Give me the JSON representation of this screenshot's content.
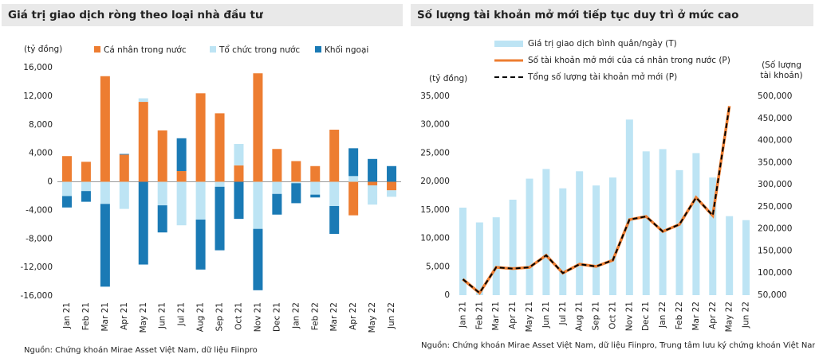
{
  "chart_data": [
    {
      "type": "stacked_bar",
      "title": "Giá trị giao dịch ròng theo loại nhà đầu tư",
      "y_label": "(tỷ đồng)",
      "source": "Nguồn: Chứng khoán Mirae Asset Việt Nam, dữ liệu Fiinpro",
      "categories": [
        "Jan 21",
        "Feb 21",
        "Mar 21",
        "Apr 21",
        "May 21",
        "Jun 21",
        "Jul 21",
        "Aug 21",
        "Sep 21",
        "Oct 21",
        "Nov 21",
        "Dec 21",
        "Jan 22",
        "Feb 22",
        "Mar 22",
        "Apr 22",
        "May 22",
        "Jun 22"
      ],
      "series": [
        {
          "name": "Cá nhân trong nước",
          "color": "#ed7d31",
          "values": [
            3600,
            2800,
            14800,
            3800,
            11200,
            7200,
            1500,
            12400,
            9600,
            2300,
            15200,
            4600,
            2900,
            2200,
            7300,
            -4700,
            -500,
            -1200
          ]
        },
        {
          "name": "Tổ chức trong nước",
          "color": "#bde4f4",
          "values": [
            -2000,
            -1300,
            -3100,
            -3800,
            500,
            -3300,
            -6100,
            -5300,
            -700,
            3000,
            -6600,
            -1700,
            -200,
            -1800,
            -3400,
            800,
            -2700,
            -900
          ]
        },
        {
          "name": "Khối ngoại",
          "color": "#1a7ab5",
          "values": [
            -1600,
            -1500,
            -11600,
            100,
            -11600,
            -3800,
            4600,
            -7000,
            -8900,
            -5200,
            -8600,
            -2900,
            -2800,
            -400,
            -3900,
            3900,
            3200,
            2200
          ]
        }
      ],
      "ylim": [
        -16000,
        16000
      ],
      "yticks": [
        {
          "value": -16000,
          "label": "-16,000"
        },
        {
          "value": -12000,
          "label": "-12,000"
        },
        {
          "value": -8000,
          "label": "-8,000"
        },
        {
          "value": -4000,
          "label": "-4,000"
        },
        0,
        {
          "value": 4000,
          "label": "4,000"
        },
        {
          "value": 8000,
          "label": "8,000"
        },
        {
          "value": 12000,
          "label": "12,000"
        },
        {
          "value": 16000,
          "label": "16,000"
        }
      ],
      "grid": false,
      "legend": "top"
    },
    {
      "type": "combo",
      "title": "Số lượng tài khoản mở mới tiếp tục duy trì ở mức cao",
      "y_label": "(tỷ đồng)",
      "y2_label": [
        "(Số lượng",
        "tài khoản)"
      ],
      "source": "Nguồn: Chứng khoán Mirae Asset Việt Nam, dữ liệu Fiinpro, Trung tâm lưu ký chứng khoán Việt Nam",
      "categories": [
        "Jan 21",
        "Feb 21",
        "Mar 21",
        "Apr 21",
        "May 21",
        "Jun 21",
        "Jul 21",
        "Aug 21",
        "Sep 21",
        "Oct 21",
        "Nov 21",
        "Dec 21",
        "Jan 22",
        "Feb 22",
        "Mar 22",
        "Apr 22",
        "May 22",
        "Jun 22"
      ],
      "series": [
        {
          "name": "Giá trị giao dịch bình quân/ngày (T)",
          "type": "bar",
          "color": "#bde4f4",
          "values": [
            15400,
            12800,
            13700,
            16800,
            20500,
            22200,
            18800,
            21800,
            19300,
            20700,
            30900,
            25300,
            25700,
            22000,
            25000,
            20700,
            13900,
            13200
          ]
        },
        {
          "name": "Số tài khoản mở mới của cá nhân trong nước (P)",
          "type": "line",
          "axis": "y2",
          "color": "#ed7d31",
          "values": [
            86000,
            55000,
            113000,
            110000,
            113000,
            140000,
            100000,
            120000,
            115000,
            129000,
            221000,
            228000,
            194000,
            210000,
            271000,
            230000,
            478000,
            null
          ]
        },
        {
          "name": "Tổng số lượng tài khoản mở mới (P)",
          "type": "line",
          "axis": "y2",
          "color": "#000000",
          "dashed": true,
          "values": [
            86000,
            55000,
            113000,
            110000,
            113000,
            140000,
            100000,
            120000,
            115000,
            129000,
            221000,
            228000,
            194000,
            210000,
            271000,
            230000,
            478000,
            null
          ]
        }
      ],
      "ylim": [
        0,
        35000
      ],
      "yticks": [
        0,
        {
          "value": 5000,
          "label": "5,000"
        },
        {
          "value": 10000,
          "label": "10,000"
        },
        {
          "value": 15000,
          "label": "15,000"
        },
        {
          "value": 20000,
          "label": "20,000"
        },
        {
          "value": 25000,
          "label": "25,000"
        },
        {
          "value": 30000,
          "label": "30,000"
        },
        {
          "value": 35000,
          "label": "35,000"
        }
      ],
      "y2lim": [
        50000,
        500000
      ],
      "y2ticks": [
        {
          "value": 50000,
          "label": "50,000"
        },
        {
          "value": 100000,
          "label": "100,000"
        },
        {
          "value": 150000,
          "label": "150,000"
        },
        {
          "value": 200000,
          "label": "200,000"
        },
        {
          "value": 250000,
          "label": "250,000"
        },
        {
          "value": 300000,
          "label": "300,000"
        },
        {
          "value": 350000,
          "label": "350,000"
        },
        {
          "value": 400000,
          "label": "400,000"
        },
        {
          "value": 450000,
          "label": "450,000"
        },
        {
          "value": 500000,
          "label": "500,000"
        }
      ],
      "grid": false,
      "legend": "top-left"
    }
  ]
}
